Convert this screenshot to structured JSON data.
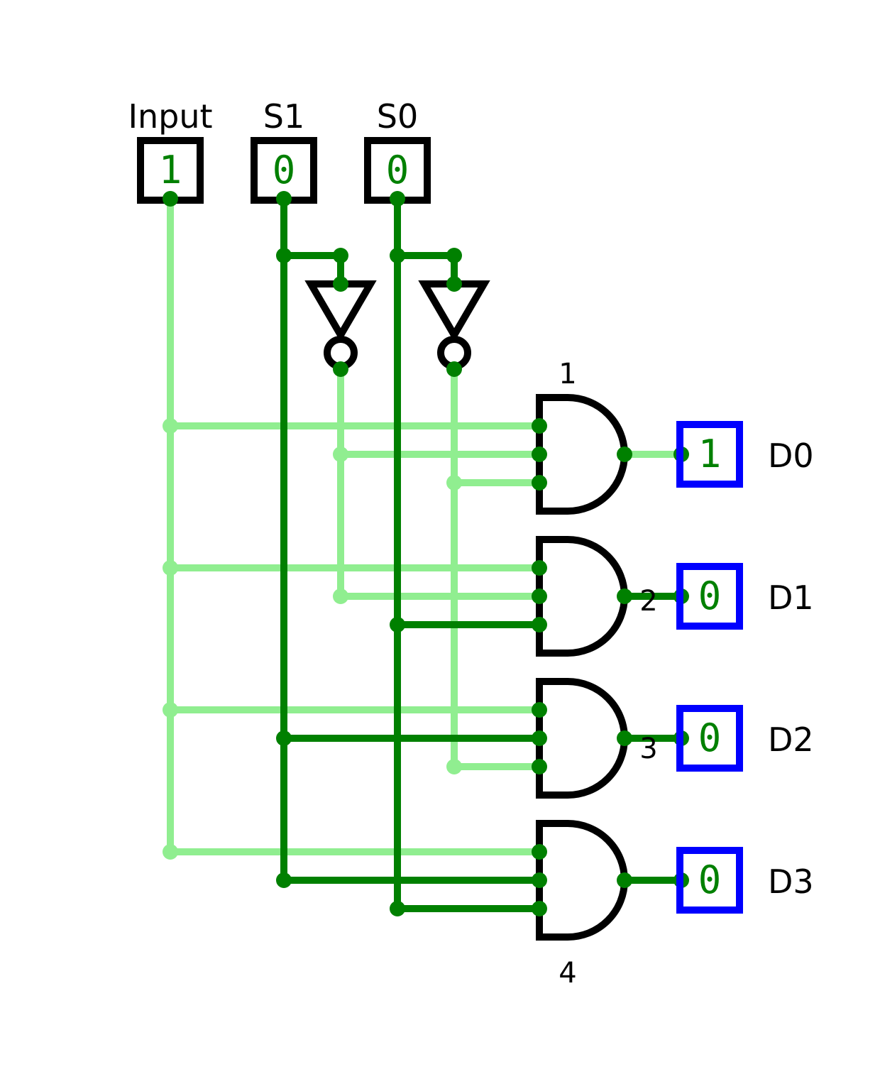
{
  "colors": {
    "wire_high": "#90ee90",
    "wire_low": "#008000",
    "gate_stroke": "#000000",
    "input_box": "#000000",
    "output_box": "#0000ff",
    "value_text": "#008000",
    "background": "#ffffff"
  },
  "inputs": [
    {
      "label": "Input",
      "value": "1"
    },
    {
      "label": "S1",
      "value": "0"
    },
    {
      "label": "S0",
      "value": "0"
    }
  ],
  "gates": [
    {
      "label": "1"
    },
    {
      "label": "2"
    },
    {
      "label": "3"
    },
    {
      "label": "4"
    }
  ],
  "outputs": [
    {
      "label": "D0",
      "value": "1"
    },
    {
      "label": "D1",
      "value": "0"
    },
    {
      "label": "D2",
      "value": "0"
    },
    {
      "label": "D3",
      "value": "0"
    }
  ]
}
